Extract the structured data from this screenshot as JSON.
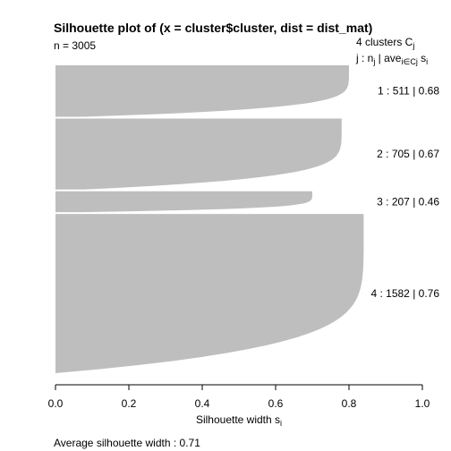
{
  "chart_data": {
    "type": "silhouette",
    "title": "Silhouette plot of (x = cluster$cluster, dist = dist_mat)",
    "n_label": "n = 3005",
    "clusters_header": "4  clusters  C",
    "clusters_header_sub": "j",
    "legend_header": {
      "j": "j :  n",
      "j_sub": "j",
      "sep": " | ave",
      "ave_sub": "i∈Cj",
      "s": "  s",
      "s_sub": "i"
    },
    "xlabel": "Silhouette width s",
    "xlabel_sub": "i",
    "xlim": [
      0,
      1
    ],
    "xticks": [
      "0.0",
      "0.2",
      "0.4",
      "0.6",
      "0.8",
      "1.0"
    ],
    "average_label": "Average silhouette width :  0.71",
    "bar_color": "#bebebe",
    "clusters": [
      {
        "id": 1,
        "n": 511,
        "ave": 0.68,
        "label": "1 :   511  |  0.68",
        "max": 0.8,
        "min": 0.08
      },
      {
        "id": 2,
        "n": 705,
        "ave": 0.67,
        "label": "2 :   705  |  0.67",
        "max": 0.78,
        "min": 0.08
      },
      {
        "id": 3,
        "n": 207,
        "ave": 0.46,
        "label": "3 :   207  |  0.46",
        "max": 0.7,
        "min": 0.07
      },
      {
        "id": 4,
        "n": 1582,
        "ave": 0.76,
        "label": "4 :  1582  |  0.76",
        "max": 0.84,
        "min": 0.0
      }
    ]
  }
}
